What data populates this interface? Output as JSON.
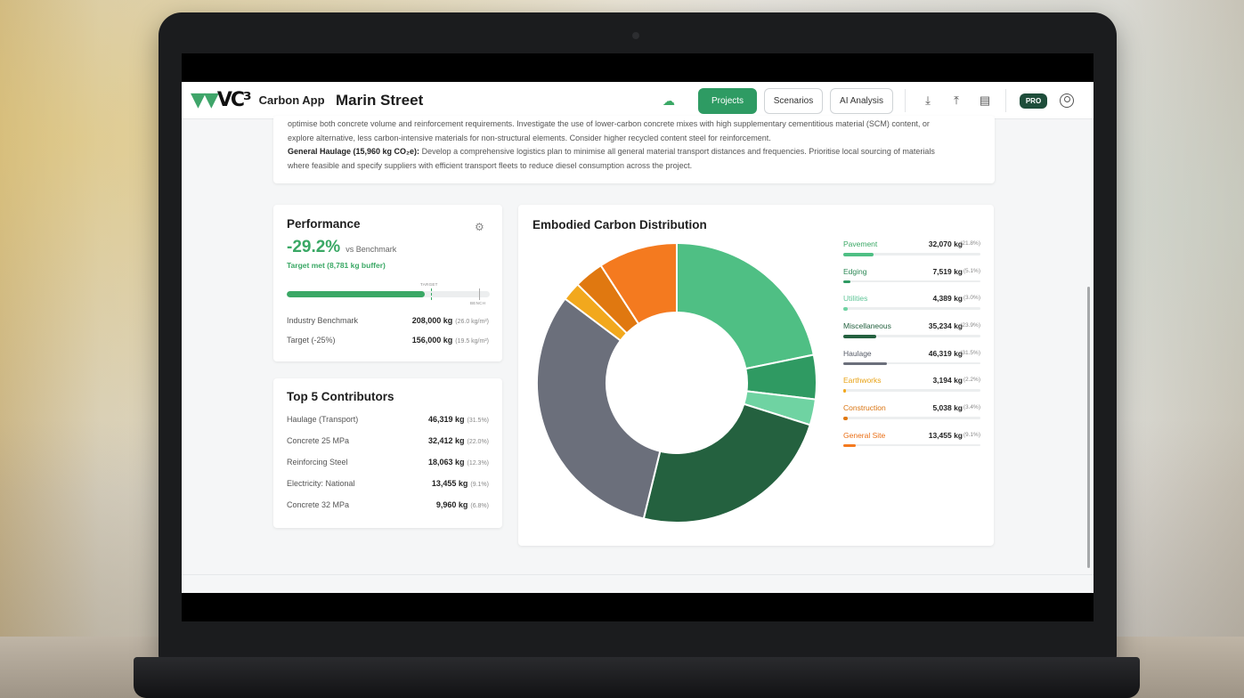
{
  "app": {
    "name": "Carbon App",
    "logo_text": "VC³",
    "project_title": "Marin Street"
  },
  "toolbar": {
    "projects_label": "Projects",
    "scenarios_label": "Scenarios",
    "ai_label": "AI Analysis",
    "pro_label": "PRO"
  },
  "recommendations": {
    "line1": "optimise both concrete volume and reinforcement requirements. Investigate the use of lower-carbon concrete mixes with high supplementary cementitious material (SCM) content, or",
    "line2": "explore alternative, less carbon-intensive materials for non-structural elements. Consider higher recycled content steel for reinforcement.",
    "haulage_heading": "General Haulage (15,960 kg CO₂e):",
    "haulage_text1": " Develop a comprehensive logistics plan to minimise all general material transport distances and frequencies. Prioritise local sourcing of materials",
    "haulage_text2": "where feasible and specify suppliers with efficient transport fleets to reduce diesel consumption across the project."
  },
  "performance": {
    "title": "Performance",
    "delta": "-29.2%",
    "vs_label": "vs Benchmark",
    "target_status": "Target met (8,781 kg buffer)",
    "progress_fraction": 0.68,
    "target_tick_label": "TARGET",
    "bench_tick_label": "BENCH",
    "rows": [
      {
        "label": "Industry Benchmark",
        "value": "208,000 kg",
        "sub": "(26.0 kg/m²)"
      },
      {
        "label": "Target (-25%)",
        "value": "156,000 kg",
        "sub": "(19.5 kg/m²)"
      }
    ]
  },
  "top5": {
    "title": "Top 5 Contributors",
    "rows": [
      {
        "label": "Haulage (Transport)",
        "value": "46,319 kg",
        "sub": "(31.5%)"
      },
      {
        "label": "Concrete 25 MPa",
        "value": "32,412 kg",
        "sub": "(22.0%)"
      },
      {
        "label": "Reinforcing Steel",
        "value": "18,063 kg",
        "sub": "(12.3%)"
      },
      {
        "label": "Electricity: National",
        "value": "13,455 kg",
        "sub": "(9.1%)"
      },
      {
        "label": "Concrete 32 MPa",
        "value": "9,960 kg",
        "sub": "(6.8%)"
      }
    ]
  },
  "chart_data": {
    "type": "pie",
    "title": "Embodied Carbon Distribution",
    "series": [
      {
        "name": "Pavement",
        "value": 32070,
        "value_label": "32,070 kg",
        "pct_label": "(21.8%)",
        "pct": 21.8,
        "color": "#4fbf84",
        "label_color": "#3aa865"
      },
      {
        "name": "Edging",
        "value": 7519,
        "value_label": "7,519 kg",
        "pct_label": "(5.1%)",
        "pct": 5.1,
        "color": "#2f9a62",
        "label_color": "#2f8a58"
      },
      {
        "name": "Utilities",
        "value": 4389,
        "value_label": "4,389 kg",
        "pct_label": "(3.0%)",
        "pct": 3.0,
        "color": "#6fd3a2",
        "label_color": "#5fc597"
      },
      {
        "name": "Miscellaneous",
        "value": 35234,
        "value_label": "35,234 kg",
        "pct_label": "(23.9%)",
        "pct": 23.9,
        "color": "#24613f",
        "label_color": "#24613f"
      },
      {
        "name": "Haulage",
        "value": 46319,
        "value_label": "46,319 kg",
        "pct_label": "(31.5%)",
        "pct": 31.5,
        "color": "#6b6f7b",
        "label_color": "#555a66"
      },
      {
        "name": "Earthworks",
        "value": 3194,
        "value_label": "3,194 kg",
        "pct_label": "(2.2%)",
        "pct": 2.2,
        "color": "#f2a81d",
        "label_color": "#e8a215"
      },
      {
        "name": "Construction",
        "value": 5038,
        "value_label": "5,038 kg",
        "pct_label": "(3.4%)",
        "pct": 3.4,
        "color": "#e07810",
        "label_color": "#d9730f"
      },
      {
        "name": "General Site",
        "value": 13455,
        "value_label": "13,455 kg",
        "pct_label": "(9.1%)",
        "pct": 9.1,
        "color": "#f47a1f",
        "label_color": "#ea6e14"
      }
    ]
  }
}
